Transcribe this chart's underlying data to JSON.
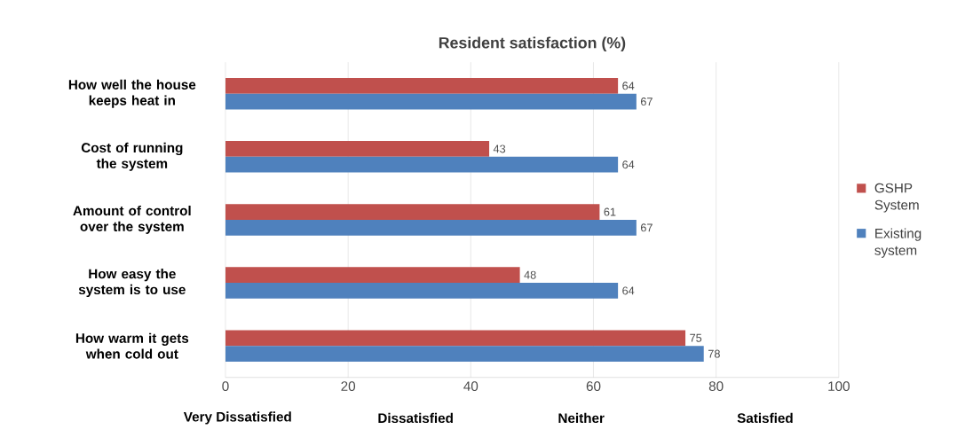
{
  "chart_data": {
    "type": "bar",
    "orientation": "horizontal",
    "title": "Resident satisfaction (%)",
    "categories": [
      "How well the house keeps heat in",
      "Cost of running the system",
      "Amount of control over the system",
      "How easy the system is to use",
      "How warm it gets when cold out"
    ],
    "series": [
      {
        "name": "GSHP System",
        "color": "#c0504d",
        "values": [
          64,
          43,
          61,
          48,
          75
        ]
      },
      {
        "name": "Existing system",
        "color": "#4f81bd",
        "values": [
          67,
          64,
          67,
          64,
          78
        ]
      }
    ],
    "xlim": [
      0,
      100
    ],
    "xticks": [
      0,
      20,
      40,
      60,
      80,
      100
    ],
    "grid": "x",
    "legend": "right",
    "data_labels": true,
    "annotations": [
      "Very Dissatisfied",
      "Dissatisfied",
      "Neither",
      "Satisfied"
    ]
  }
}
